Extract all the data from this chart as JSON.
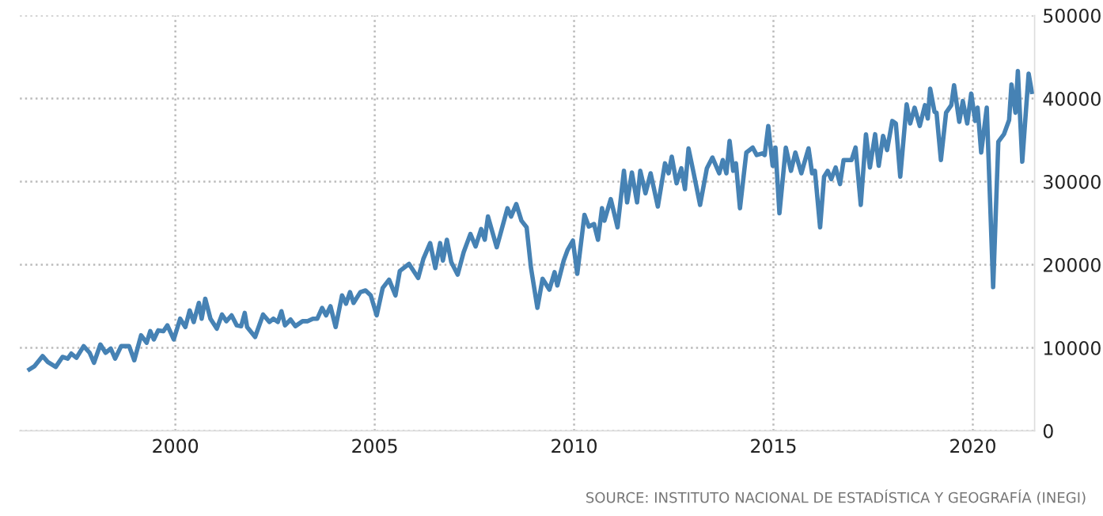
{
  "chart_data": {
    "type": "line",
    "x": [
      1996.34,
      1996.47,
      1996.67,
      1996.8,
      1997.0,
      1997.17,
      1997.3,
      1997.39,
      1997.52,
      1997.7,
      1997.85,
      1997.96,
      1998.12,
      1998.25,
      1998.38,
      1998.49,
      1998.64,
      1998.84,
      1998.97,
      1999.14,
      1999.28,
      1999.37,
      1999.46,
      1999.57,
      1999.7,
      1999.8,
      1999.96,
      2000.12,
      2000.25,
      2000.36,
      2000.46,
      2000.59,
      2000.66,
      2000.75,
      2000.88,
      2001.04,
      2001.17,
      2001.28,
      2001.41,
      2001.54,
      2001.65,
      2001.74,
      2001.8,
      2002.0,
      2002.2,
      2002.36,
      2002.46,
      2002.57,
      2002.66,
      2002.75,
      2002.89,
      2003.01,
      2003.19,
      2003.32,
      2003.45,
      2003.56,
      2003.68,
      2003.78,
      2003.89,
      2004.02,
      2004.18,
      2004.28,
      2004.38,
      2004.47,
      2004.64,
      2004.77,
      2004.9,
      2005.05,
      2005.2,
      2005.36,
      2005.52,
      2005.63,
      2005.86,
      2006.09,
      2006.22,
      2006.39,
      2006.52,
      2006.64,
      2006.71,
      2006.81,
      2006.92,
      2007.08,
      2007.23,
      2007.4,
      2007.53,
      2007.67,
      2007.76,
      2007.84,
      2008.06,
      2008.33,
      2008.42,
      2008.55,
      2008.68,
      2008.81,
      2008.92,
      2009.08,
      2009.21,
      2009.38,
      2009.51,
      2009.58,
      2009.74,
      2009.84,
      2009.97,
      2010.08,
      2010.26,
      2010.37,
      2010.5,
      2010.6,
      2010.7,
      2010.76,
      2010.92,
      2011.09,
      2011.25,
      2011.33,
      2011.45,
      2011.58,
      2011.66,
      2011.79,
      2011.92,
      2012.1,
      2012.28,
      2012.37,
      2012.45,
      2012.57,
      2012.69,
      2012.78,
      2012.87,
      2013.0,
      2013.16,
      2013.33,
      2013.47,
      2013.64,
      2013.73,
      2013.82,
      2013.9,
      2013.99,
      2014.06,
      2014.16,
      2014.32,
      2014.48,
      2014.58,
      2014.72,
      2014.78,
      2014.87,
      2014.98,
      2015.05,
      2015.15,
      2015.31,
      2015.44,
      2015.55,
      2015.7,
      2015.77,
      2015.88,
      2015.97,
      2016.04,
      2016.17,
      2016.27,
      2016.36,
      2016.45,
      2016.56,
      2016.67,
      2016.76,
      2016.96,
      2017.06,
      2017.19,
      2017.32,
      2017.42,
      2017.55,
      2017.64,
      2017.75,
      2017.85,
      2017.98,
      2018.07,
      2018.18,
      2018.34,
      2018.43,
      2018.54,
      2018.67,
      2018.8,
      2018.87,
      2018.93,
      2019.04,
      2019.09,
      2019.2,
      2019.33,
      2019.46,
      2019.53,
      2019.66,
      2019.75,
      2019.86,
      2019.96,
      2020.06,
      2020.12,
      2020.21,
      2020.35,
      2020.51,
      2020.64,
      2020.78,
      2020.91,
      2020.97,
      2021.07,
      2021.13,
      2021.24,
      2021.4,
      2021.48
    ],
    "series": [
      {
        "color": "#4682b4",
        "values": [
          7400,
          7800,
          9000,
          8300,
          7700,
          8900,
          8700,
          9300,
          8800,
          10200,
          9400,
          8200,
          10400,
          9400,
          9900,
          8700,
          10200,
          10200,
          8500,
          11500,
          10600,
          12000,
          11000,
          12100,
          12000,
          12700,
          11000,
          13500,
          12500,
          14500,
          13100,
          15400,
          13500,
          15900,
          13500,
          12300,
          14000,
          13200,
          13900,
          12700,
          12600,
          14200,
          12500,
          11300,
          14000,
          13100,
          13500,
          13100,
          14400,
          12700,
          13400,
          12600,
          13200,
          13200,
          13500,
          13500,
          14800,
          13900,
          15000,
          12500,
          16300,
          15300,
          16700,
          15400,
          16700,
          16900,
          16300,
          13900,
          17200,
          18200,
          16300,
          19250,
          20100,
          18400,
          20700,
          22600,
          19600,
          22600,
          20500,
          23000,
          20300,
          18800,
          21500,
          23700,
          22200,
          24300,
          23000,
          25800,
          22100,
          26800,
          25800,
          27300,
          25300,
          24500,
          19600,
          14800,
          18300,
          17000,
          19100,
          17500,
          20500,
          21800,
          22900,
          18900,
          26000,
          24600,
          24900,
          23000,
          26800,
          25300,
          27900,
          24500,
          31300,
          27500,
          31100,
          27500,
          31300,
          28600,
          31000,
          27000,
          32200,
          31000,
          33000,
          29800,
          31600,
          29100,
          34000,
          31000,
          27200,
          31600,
          32900,
          31000,
          32600,
          31000,
          34900,
          31300,
          32200,
          26800,
          33500,
          34100,
          33200,
          33400,
          33200,
          36700,
          31900,
          34100,
          26200,
          34100,
          31300,
          33500,
          31000,
          32200,
          34000,
          31000,
          31300,
          24500,
          30600,
          31300,
          30300,
          31700,
          29700,
          32600,
          32600,
          34100,
          27200,
          35700,
          31700,
          35700,
          31900,
          35500,
          33800,
          37300,
          37000,
          30600,
          39300,
          37000,
          38900,
          36700,
          39200,
          37600,
          41200,
          38400,
          38300,
          32600,
          38300,
          39200,
          41600,
          37200,
          39700,
          37000,
          40600,
          37300,
          38900,
          33500,
          38900,
          17300,
          34800,
          35700,
          37400,
          41700,
          38300,
          43300,
          32400,
          43000,
          40800
        ]
      }
    ],
    "xlim": [
      1996.1,
      2021.55
    ],
    "xticks": [
      2000,
      2005,
      2010,
      2015,
      2020
    ],
    "ylim": [
      0,
      50000
    ],
    "yticks": [
      0,
      10000,
      20000,
      30000,
      40000,
      50000
    ],
    "grid": true,
    "line_style": "solid",
    "annotations": [
      "SOURCE: INSTITUTO NACIONAL DE ESTADÍSTICA Y GEOGRAFÍA (INEGI)"
    ]
  }
}
